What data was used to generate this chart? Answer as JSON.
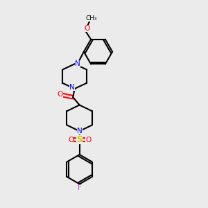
{
  "background_color": "#ebebeb",
  "bond_color": "#000000",
  "N_color": "#0000ff",
  "O_color": "#ff0000",
  "S_color": "#cccc00",
  "F_color": "#cc44cc",
  "line_width": 1.5,
  "figsize": [
    3.0,
    3.0
  ],
  "dpi": 100,
  "xlim": [
    0,
    10
  ],
  "ylim": [
    0,
    10
  ]
}
